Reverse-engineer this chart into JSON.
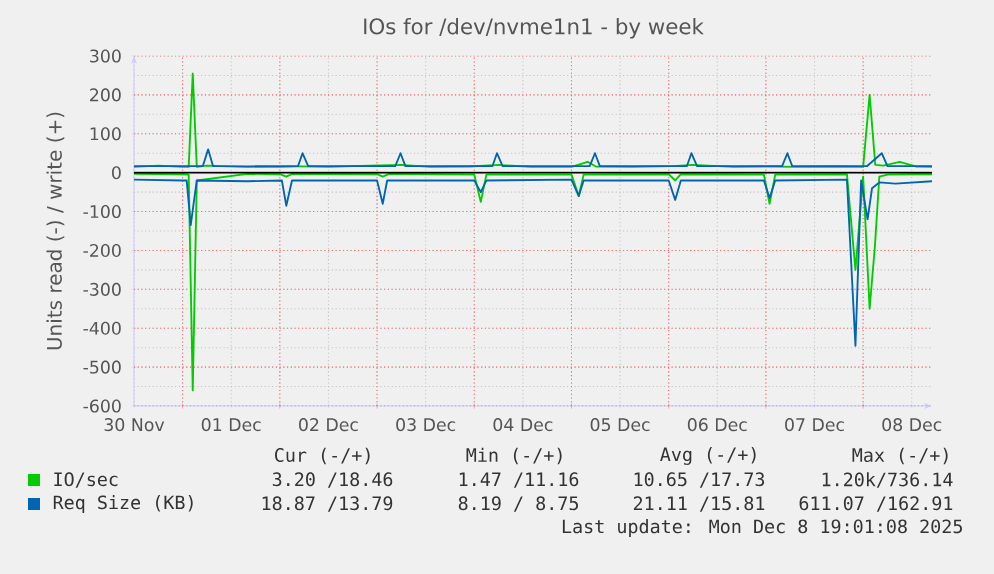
{
  "chart_data": {
    "type": "line",
    "title": "IOs for /dev/nvme1n1 - by week",
    "ylabel": "Units read (-) / write (+)",
    "xlim": [
      "2025-11-30T12:00",
      "2025-12-08T17:00"
    ],
    "ylim": [
      -600,
      300
    ],
    "xticks": [
      {
        "value": "2025-11-30T12:00",
        "label": "30 Nov"
      },
      {
        "value": "2025-12-01T00:00",
        "label": null
      },
      {
        "value": "2025-12-01T12:00",
        "label": "01 Dec"
      },
      {
        "value": "2025-12-02T00:00",
        "label": null
      },
      {
        "value": "2025-12-02T12:00",
        "label": "02 Dec"
      },
      {
        "value": "2025-12-03T00:00",
        "label": null
      },
      {
        "value": "2025-12-03T12:00",
        "label": "03 Dec"
      },
      {
        "value": "2025-12-04T00:00",
        "label": null
      },
      {
        "value": "2025-12-04T12:00",
        "label": "04 Dec"
      },
      {
        "value": "2025-12-05T00:00",
        "label": null
      },
      {
        "value": "2025-12-05T12:00",
        "label": "05 Dec"
      },
      {
        "value": "2025-12-06T00:00",
        "label": null
      },
      {
        "value": "2025-12-06T12:00",
        "label": "06 Dec"
      },
      {
        "value": "2025-12-07T00:00",
        "label": null
      },
      {
        "value": "2025-12-07T12:00",
        "label": "07 Dec"
      },
      {
        "value": "2025-12-08T00:00",
        "label": null
      },
      {
        "value": "2025-12-08T12:00",
        "label": "08 Dec"
      }
    ],
    "yticks": [
      -600,
      -500,
      -400,
      -300,
      -200,
      -100,
      0,
      100,
      200,
      300
    ],
    "grid": true,
    "legend": "bottom",
    "ref_lines": [
      {
        "axis": "y",
        "value": 0,
        "color": "#000000"
      }
    ],
    "series": [
      {
        "name": "IO/sec",
        "color": "#00cc00",
        "x": [
          "2025-11-30T12:00",
          "2025-11-30T18:00",
          "2025-12-01T00:00",
          "2025-12-01T01:30",
          "2025-12-01T02:30",
          "2025-12-01T03:30",
          "2025-12-01T06:00",
          "2025-12-01T16:00",
          "2025-12-02T02:00",
          "2025-12-02T12:00",
          "2025-12-02T22:00",
          "2025-12-03T06:00",
          "2025-12-03T13:00",
          "2025-12-03T23:00",
          "2025-12-04T06:00",
          "2025-12-04T14:00",
          "2025-12-05T00:00",
          "2025-12-05T04:00",
          "2025-12-05T06:00",
          "2025-12-05T15:00",
          "2025-12-06T01:00",
          "2025-12-06T06:00",
          "2025-12-06T16:00",
          "2025-12-07T02:00",
          "2025-12-07T07:00",
          "2025-12-07T17:00",
          "2025-12-08T00:00",
          "2025-12-08T01:36",
          "2025-12-08T03:00",
          "2025-12-08T05:00",
          "2025-12-08T09:00",
          "2025-12-08T13:00",
          "2025-12-08T17:00"
        ],
        "values": [
          15,
          18,
          15,
          15,
          255,
          15,
          18,
          15,
          17,
          15,
          18,
          20,
          15,
          16,
          20,
          15,
          15,
          28,
          16,
          15,
          17,
          20,
          15,
          16,
          15,
          16,
          15,
          200,
          20,
          18,
          28,
          16,
          15
        ]
      },
      {
        "color": "#00cc00",
        "x": [
          "2025-11-30T12:00",
          "2025-12-01T00:00",
          "2025-12-01T01:30",
          "2025-12-01T02:30",
          "2025-12-01T03:30",
          "2025-12-01T16:00",
          "2025-12-02T00:00",
          "2025-12-02T01:36",
          "2025-12-02T03:00",
          "2025-12-03T00:00",
          "2025-12-03T01:24",
          "2025-12-03T03:00",
          "2025-12-04T00:00",
          "2025-12-04T01:36",
          "2025-12-04T03:00",
          "2025-12-05T00:00",
          "2025-12-05T01:48",
          "2025-12-05T03:00",
          "2025-12-06T00:00",
          "2025-12-06T01:36",
          "2025-12-06T03:00",
          "2025-12-06T23:30",
          "2025-12-07T00:54",
          "2025-12-07T02:18",
          "2025-12-07T20:00",
          "2025-12-07T22:06",
          "2025-12-08T00:00",
          "2025-12-08T01:36",
          "2025-12-08T02:54",
          "2025-12-08T04:00",
          "2025-12-08T06:00",
          "2025-12-08T13:00",
          "2025-12-08T17:00"
        ],
        "values": [
          -3,
          -4,
          -5,
          -560,
          -20,
          -3,
          -4,
          -10,
          -3,
          -4,
          -10,
          -3,
          -5,
          -75,
          -5,
          -5,
          -60,
          -5,
          -4,
          -20,
          -4,
          -5,
          -80,
          -5,
          -4,
          -250,
          -10,
          -350,
          -190,
          -10,
          -5,
          -4,
          -4
        ]
      },
      {
        "name": "Req Size (KB)",
        "color": "#0066b3",
        "x": [
          "2025-11-30T12:00",
          "2025-12-01T00:00",
          "2025-12-01T05:00",
          "2025-12-01T06:18",
          "2025-12-01T07:30",
          "2025-12-02T00:00",
          "2025-12-02T04:30",
          "2025-12-02T05:36",
          "2025-12-02T07:00",
          "2025-12-03T04:30",
          "2025-12-03T05:48",
          "2025-12-03T07:00",
          "2025-12-04T04:30",
          "2025-12-04T05:36",
          "2025-12-04T07:00",
          "2025-12-05T04:30",
          "2025-12-05T05:48",
          "2025-12-05T07:00",
          "2025-12-06T04:30",
          "2025-12-06T05:36",
          "2025-12-06T07:00",
          "2025-12-07T04:00",
          "2025-12-07T05:18",
          "2025-12-07T06:30",
          "2025-12-07T22:00",
          "2025-12-08T01:00",
          "2025-12-08T04:36",
          "2025-12-08T06:00",
          "2025-12-08T17:00"
        ],
        "values": [
          17,
          17,
          17,
          60,
          17,
          16,
          17,
          50,
          17,
          17,
          50,
          17,
          17,
          50,
          17,
          17,
          50,
          17,
          17,
          50,
          17,
          17,
          50,
          17,
          17,
          17,
          50,
          17,
          17
        ]
      },
      {
        "color": "#0066b3",
        "x": [
          "2025-11-30T12:00",
          "2025-12-01T00:00",
          "2025-12-01T01:00",
          "2025-12-01T02:00",
          "2025-12-01T03:30",
          "2025-12-01T16:00",
          "2025-12-02T00:30",
          "2025-12-02T01:36",
          "2025-12-02T03:00",
          "2025-12-03T00:00",
          "2025-12-03T01:24",
          "2025-12-03T02:30",
          "2025-12-04T00:00",
          "2025-12-04T01:36",
          "2025-12-04T03:00",
          "2025-12-05T00:00",
          "2025-12-05T01:48",
          "2025-12-05T03:00",
          "2025-12-06T00:00",
          "2025-12-06T01:36",
          "2025-12-06T03:00",
          "2025-12-06T23:30",
          "2025-12-07T00:54",
          "2025-12-07T02:18",
          "2025-12-07T20:00",
          "2025-12-07T22:06",
          "2025-12-07T23:30",
          "2025-12-08T01:06",
          "2025-12-08T02:12",
          "2025-12-08T04:00",
          "2025-12-08T08:00",
          "2025-12-08T17:00"
        ],
        "values": [
          -18,
          -20,
          -20,
          -135,
          -20,
          -22,
          -20,
          -85,
          -20,
          -20,
          -80,
          -20,
          -20,
          -50,
          -20,
          -18,
          -60,
          -20,
          -20,
          -70,
          -20,
          -20,
          -65,
          -20,
          -18,
          -445,
          -20,
          -120,
          -40,
          -25,
          -28,
          -22
        ]
      }
    ],
    "annotations": [
      "Cur (-/+)",
      "Min (-/+)",
      "Avg (-/+)",
      "Max (-/+)",
      "3.20 /18.46",
      "1.47 /11.16",
      "10.65 /17.73",
      "1.20k/736.14",
      "18.87 /13.79",
      "8.19 / 8.75",
      "21.11 /15.81",
      "611.07 /162.91",
      "Last update: Mon Dec  8 19:01:08 2025"
    ]
  }
}
